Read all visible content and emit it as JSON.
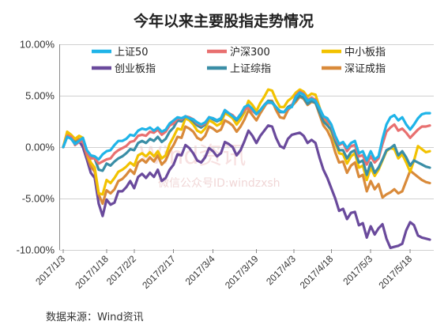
{
  "chart_data": {
    "type": "line",
    "title": "今年以来主要股指走势情况",
    "source": "数据来源：Wind资讯",
    "watermark": {
      "main": "Wind资讯",
      "sub": "微信公众号ID:windzxsh"
    },
    "ylim": [
      -10,
      10
    ],
    "yticks": [
      10,
      5,
      0,
      -5,
      -10
    ],
    "ytick_labels": [
      "10.00%",
      "5.00%",
      "0.00%",
      "-5.00%",
      "-10.00%"
    ],
    "x": [
      "2017/1/3",
      "2017/1/4",
      "2017/1/5",
      "2017/1/6",
      "2017/1/9",
      "2017/1/10",
      "2017/1/11",
      "2017/1/12",
      "2017/1/13",
      "2017/1/16",
      "2017/1/17",
      "2017/1/18",
      "2017/1/19",
      "2017/1/20",
      "2017/1/23",
      "2017/1/24",
      "2017/1/25",
      "2017/1/26",
      "2017/2/3",
      "2017/2/6",
      "2017/2/7",
      "2017/2/8",
      "2017/2/9",
      "2017/2/10",
      "2017/2/13",
      "2017/2/14",
      "2017/2/15",
      "2017/2/16",
      "2017/2/17",
      "2017/2/20",
      "2017/2/21",
      "2017/2/22",
      "2017/2/23",
      "2017/2/24",
      "2017/2/27",
      "2017/2/28",
      "2017/3/1",
      "2017/3/2",
      "2017/3/3",
      "2017/3/6",
      "2017/3/7",
      "2017/3/8",
      "2017/3/9",
      "2017/3/10",
      "2017/3/13",
      "2017/3/14",
      "2017/3/15",
      "2017/3/16",
      "2017/3/17",
      "2017/3/20",
      "2017/3/21",
      "2017/3/22",
      "2017/3/23",
      "2017/3/24",
      "2017/3/27",
      "2017/3/28",
      "2017/3/29",
      "2017/3/30",
      "2017/3/31",
      "2017/4/5",
      "2017/4/6",
      "2017/4/7",
      "2017/4/10",
      "2017/4/11",
      "2017/4/12",
      "2017/4/13",
      "2017/4/14",
      "2017/4/17",
      "2017/4/18",
      "2017/4/19",
      "2017/4/20",
      "2017/4/21",
      "2017/4/24",
      "2017/4/25",
      "2017/4/26",
      "2017/4/27",
      "2017/4/28",
      "2017/5/2",
      "2017/5/3",
      "2017/5/4",
      "2017/5/5",
      "2017/5/8",
      "2017/5/9",
      "2017/5/10",
      "2017/5/11",
      "2017/5/12",
      "2017/5/15",
      "2017/5/16",
      "2017/5/17",
      "2017/5/18",
      "2017/5/19",
      "2017/5/22",
      "2017/5/23",
      "2017/5/24"
    ],
    "xtick_labels": [
      "2017/1/3",
      "2017/1/18",
      "2017/2/2",
      "2017/2/17",
      "2017/3/4",
      "2017/3/19",
      "2017/4/3",
      "2017/4/18",
      "2017/5/3",
      "2017/5/18"
    ],
    "xtick_index": [
      0,
      11,
      18,
      28,
      38,
      49,
      58.5,
      68,
      78,
      88
    ],
    "series": [
      {
        "name": "上证50",
        "color": "#1fb4e8",
        "values": [
          0.0,
          1.0,
          0.8,
          0.3,
          0.6,
          0.9,
          -0.3,
          -0.8,
          -0.9,
          -1.2,
          -0.7,
          -0.4,
          -0.3,
          0.2,
          0.6,
          0.6,
          0.8,
          1.2,
          1.1,
          1.6,
          1.8,
          1.7,
          1.9,
          1.6,
          1.9,
          1.5,
          1.7,
          2.3,
          2.6,
          2.9,
          2.8,
          3.0,
          2.8,
          2.7,
          2.4,
          2.2,
          2.4,
          2.9,
          2.8,
          2.6,
          2.8,
          3.6,
          3.3,
          3.0,
          2.7,
          3.2,
          3.9,
          4.1,
          3.7,
          3.2,
          3.6,
          4.1,
          4.4,
          4.3,
          3.9,
          3.5,
          3.4,
          3.8,
          3.9,
          4.9,
          5.3,
          5.1,
          4.5,
          4.7,
          4.5,
          3.8,
          3.0,
          2.8,
          2.2,
          1.1,
          0.3,
          0.5,
          -0.1,
          0.4,
          0.6,
          -0.6,
          -0.4,
          -1.3,
          -0.4,
          -1.2,
          -0.9,
          0.8,
          2.2,
          2.9,
          3.1,
          2.6,
          2.9,
          2.2,
          1.7,
          2.2,
          2.8,
          3.2,
          3.3,
          3.3
        ]
      },
      {
        "name": "沪深300",
        "color": "#e87070",
        "values": [
          0.0,
          1.1,
          1.0,
          0.2,
          0.5,
          0.6,
          -0.6,
          -1.1,
          -1.1,
          -1.6,
          -1.4,
          -1.2,
          -1.1,
          -0.6,
          -0.3,
          -0.1,
          0.1,
          0.5,
          0.6,
          1.1,
          1.2,
          1.1,
          1.5,
          1.4,
          1.7,
          1.2,
          1.5,
          2.1,
          2.3,
          2.8,
          2.7,
          3.0,
          2.9,
          2.7,
          2.3,
          2.1,
          2.3,
          2.9,
          2.8,
          2.6,
          2.8,
          3.6,
          3.3,
          3.1,
          2.7,
          3.2,
          3.6,
          3.9,
          3.5,
          3.2,
          3.6,
          4.1,
          4.3,
          4.3,
          3.9,
          3.5,
          3.4,
          3.7,
          4.0,
          5.0,
          5.4,
          5.2,
          4.6,
          4.8,
          4.6,
          3.8,
          3.0,
          2.5,
          2.1,
          0.9,
          0.2,
          0.4,
          -0.4,
          0.1,
          0.2,
          -0.9,
          -0.8,
          -1.7,
          -0.9,
          -1.5,
          -1.1,
          0.3,
          1.5,
          1.9,
          2.2,
          1.6,
          1.8,
          1.4,
          0.9,
          1.3,
          1.7,
          2.0,
          2.0,
          2.1
        ]
      },
      {
        "name": "中小板指",
        "color": "#f2c200",
        "values": [
          0.0,
          1.5,
          1.2,
          0.8,
          1.1,
          0.9,
          -0.5,
          -1.5,
          -2.0,
          -4.5,
          -4.6,
          -3.2,
          -3.5,
          -3.0,
          -2.4,
          -2.2,
          -1.9,
          -1.5,
          -1.8,
          -0.8,
          -0.6,
          -0.9,
          -0.5,
          -0.9,
          -0.4,
          -1.1,
          -0.8,
          0.3,
          1.0,
          1.8,
          1.7,
          2.8,
          2.6,
          2.2,
          1.6,
          1.4,
          1.8,
          2.6,
          2.4,
          2.1,
          2.3,
          3.3,
          3.1,
          2.8,
          2.2,
          2.7,
          3.4,
          4.5,
          4.1,
          3.5,
          4.3,
          4.9,
          5.6,
          5.5,
          4.6,
          3.9,
          3.9,
          4.5,
          4.8,
          5.3,
          5.6,
          5.4,
          4.9,
          5.2,
          5.1,
          3.9,
          2.7,
          2.2,
          1.5,
          0.4,
          -0.6,
          -0.7,
          -1.6,
          -0.9,
          -0.6,
          -2.0,
          -1.8,
          -3.2,
          -2.0,
          -2.8,
          -2.2,
          -1.3,
          -0.4,
          -0.1,
          -0.2,
          -1.1,
          -0.7,
          -1.5,
          -2.4,
          -1.3,
          0.1,
          -0.2,
          -0.5,
          -0.4
        ]
      },
      {
        "name": "创业板指",
        "color": "#6a4a9c",
        "values": [
          0.0,
          1.2,
          1.0,
          0.5,
          0.6,
          0.0,
          -1.2,
          -2.5,
          -3.0,
          -5.5,
          -6.7,
          -5.1,
          -5.6,
          -5.4,
          -4.3,
          -4.3,
          -3.9,
          -3.3,
          -4.0,
          -2.9,
          -2.6,
          -3.0,
          -2.5,
          -2.9,
          -2.2,
          -3.3,
          -3.0,
          -2.2,
          -1.7,
          -0.7,
          -0.8,
          0.2,
          -0.1,
          -0.6,
          -1.3,
          -1.5,
          -1.0,
          -0.1,
          -0.4,
          -0.9,
          -0.6,
          0.5,
          0.3,
          0.0,
          -0.8,
          -0.3,
          0.6,
          1.6,
          1.1,
          0.4,
          1.1,
          1.6,
          2.1,
          2.0,
          0.9,
          0.1,
          -0.1,
          0.8,
          1.2,
          1.3,
          1.4,
          1.1,
          0.4,
          0.7,
          0.4,
          -1.0,
          -2.2,
          -3.0,
          -4.0,
          -5.0,
          -6.2,
          -6.0,
          -7.0,
          -6.4,
          -6.3,
          -7.6,
          -7.4,
          -8.8,
          -7.7,
          -8.5,
          -7.9,
          -7.5,
          -8.9,
          -9.8,
          -9.7,
          -9.6,
          -9.4,
          -8.1,
          -7.3,
          -7.6,
          -8.6,
          -8.8,
          -8.9,
          -9.0
        ]
      },
      {
        "name": "上证综指",
        "color": "#3a8ea6",
        "values": [
          0.0,
          1.0,
          0.9,
          0.4,
          0.6,
          0.6,
          -0.5,
          -1.0,
          -1.1,
          -2.2,
          -2.3,
          -1.6,
          -1.8,
          -1.4,
          -1.1,
          -0.9,
          -0.6,
          -0.2,
          -0.3,
          0.4,
          0.6,
          0.4,
          0.8,
          0.6,
          1.0,
          0.5,
          0.8,
          1.5,
          1.9,
          2.6,
          2.5,
          3.0,
          2.8,
          2.5,
          2.1,
          1.9,
          2.2,
          2.9,
          2.7,
          2.5,
          2.7,
          3.5,
          3.3,
          3.0,
          2.6,
          3.1,
          3.6,
          4.0,
          3.6,
          3.2,
          3.6,
          4.1,
          4.5,
          4.4,
          3.9,
          3.4,
          3.4,
          3.9,
          4.1,
          4.6,
          5.0,
          4.8,
          4.2,
          4.5,
          4.3,
          3.4,
          2.5,
          2.1,
          1.7,
          0.6,
          -0.3,
          -0.3,
          -1.1,
          -0.5,
          -0.3,
          -1.5,
          -1.3,
          -2.7,
          -1.5,
          -2.5,
          -2.0,
          -1.2,
          -0.3,
          -0.1,
          0.2,
          -0.8,
          -0.4,
          -1.0,
          -1.8,
          -1.3,
          -1.5,
          -1.7,
          -1.9,
          -2.0
        ]
      },
      {
        "name": "深证成指",
        "color": "#d98a3a",
        "values": [
          0.0,
          1.3,
          1.1,
          0.5,
          0.8,
          0.6,
          -0.8,
          -1.9,
          -2.4,
          -4.6,
          -5.5,
          -4.2,
          -4.5,
          -4.1,
          -3.3,
          -3.1,
          -2.7,
          -2.2,
          -2.6,
          -1.5,
          -1.2,
          -1.5,
          -1.0,
          -1.4,
          -0.8,
          -1.7,
          -1.3,
          -0.4,
          0.2,
          1.0,
          0.9,
          2.0,
          1.8,
          1.5,
          0.9,
          0.7,
          1.1,
          2.0,
          1.8,
          1.5,
          1.7,
          2.6,
          2.4,
          2.1,
          1.5,
          2.0,
          2.7,
          3.6,
          3.1,
          2.6,
          3.3,
          3.9,
          4.5,
          4.5,
          3.6,
          2.9,
          2.8,
          3.6,
          4.0,
          4.4,
          4.9,
          4.7,
          4.1,
          4.4,
          4.3,
          3.2,
          2.1,
          1.6,
          0.8,
          -0.5,
          -1.5,
          -1.4,
          -2.5,
          -1.8,
          -1.5,
          -2.9,
          -2.7,
          -4.3,
          -3.3,
          -4.1,
          -3.6,
          -4.9,
          -4.6,
          -4.4,
          -4.1,
          -4.5,
          -4.3,
          -3.3,
          -2.3,
          -2.6,
          -2.9,
          -3.2,
          -3.4,
          -3.5
        ]
      }
    ]
  }
}
